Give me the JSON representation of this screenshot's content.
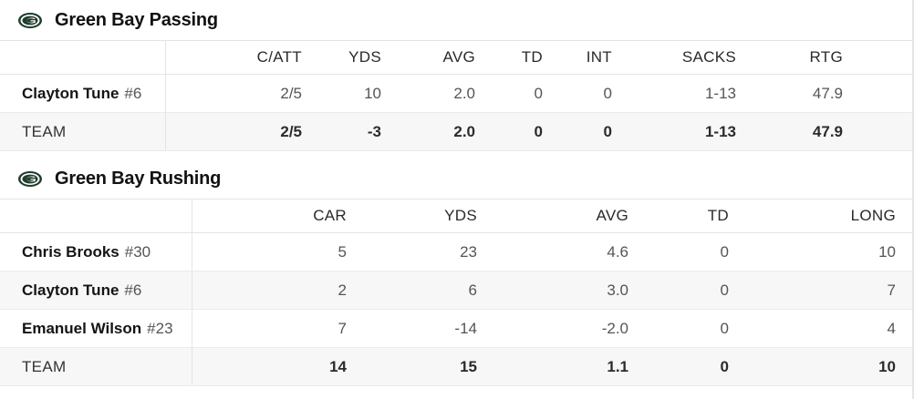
{
  "colors": {
    "logo_green": "#1f3d2d",
    "logo_gold": "#ffffff"
  },
  "passing": {
    "title": "Green Bay Passing",
    "icon": "packers-logo-icon",
    "columns": [
      "C/ATT",
      "YDS",
      "AVG",
      "TD",
      "INT",
      "SACKS",
      "RTG"
    ],
    "players": [
      {
        "name": "Clayton Tune",
        "number": "#6",
        "stats": [
          "2/5",
          "10",
          "2.0",
          "0",
          "0",
          "1-13",
          "47.9"
        ]
      }
    ],
    "team": {
      "label": "TEAM",
      "stats": [
        "2/5",
        "-3",
        "2.0",
        "0",
        "0",
        "1-13",
        "47.9"
      ]
    }
  },
  "rushing": {
    "title": "Green Bay Rushing",
    "icon": "packers-logo-icon",
    "columns": [
      "CAR",
      "YDS",
      "AVG",
      "TD",
      "LONG"
    ],
    "players": [
      {
        "name": "Chris Brooks",
        "number": "#30",
        "stats": [
          "5",
          "23",
          "4.6",
          "0",
          "10"
        ]
      },
      {
        "name": "Clayton Tune",
        "number": "#6",
        "stats": [
          "2",
          "6",
          "3.0",
          "0",
          "7"
        ]
      },
      {
        "name": "Emanuel Wilson",
        "number": "#23",
        "stats": [
          "7",
          "-14",
          "-2.0",
          "0",
          "4"
        ]
      }
    ],
    "team": {
      "label": "TEAM",
      "stats": [
        "14",
        "15",
        "1.1",
        "0",
        "10"
      ]
    }
  }
}
